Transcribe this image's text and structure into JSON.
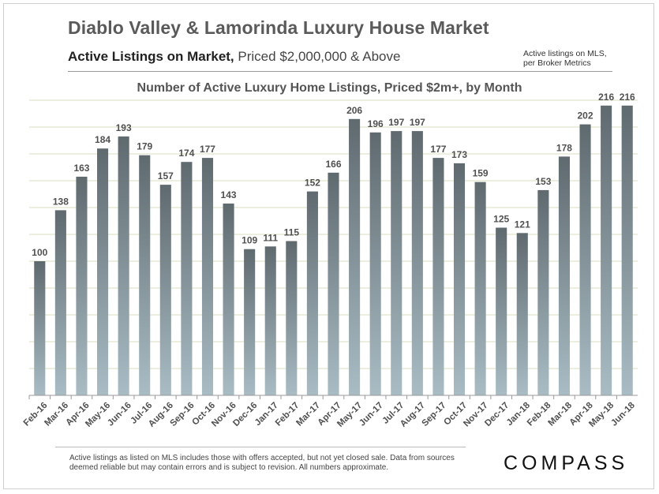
{
  "header": {
    "title": "Diablo Valley & Lamorinda Luxury House Market",
    "subtitle_bold": "Active Listings on Market,",
    "subtitle_rest": "Priced $2,000,000 & Above",
    "note_line1": "Active listings on MLS,",
    "note_line2": "per Broker Metrics"
  },
  "footer": {
    "footnote": "Active listings as listed on MLS includes those with offers accepted, but not yet closed sale. Data from sources deemed reliable but may contain errors and is subject to revision. All numbers approximate.",
    "logo": "COMPASS"
  },
  "colors": {
    "bar_top": "#5f6a6f",
    "bar_bottom": "#a9bcc4",
    "grid": "#d8dcc0",
    "label": "#505050"
  },
  "chart_data": {
    "type": "bar",
    "title": "Number of Active Luxury Home Listings, Priced $2m+, by Month",
    "categories": [
      "Feb-16",
      "Mar-16",
      "Apr-16",
      "May-16",
      "Jun-16",
      "Jul-16",
      "Aug-16",
      "Sep-16",
      "Oct-16",
      "Nov-16",
      "Dec-16",
      "Jan-17",
      "Feb-17",
      "Mar-17",
      "Apr-17",
      "May-17",
      "Jun-17",
      "Jul-17",
      "Aug-17",
      "Sep-17",
      "Oct-17",
      "Nov-17",
      "Dec-17",
      "Jan-18",
      "Feb-18",
      "Mar-18",
      "Apr-18",
      "May-18",
      "Jun-18"
    ],
    "values": [
      100,
      138,
      163,
      184,
      193,
      179,
      157,
      174,
      177,
      143,
      109,
      111,
      115,
      152,
      166,
      206,
      196,
      197,
      197,
      177,
      173,
      159,
      125,
      121,
      153,
      178,
      202,
      216,
      216
    ],
    "ylim": [
      0,
      220
    ],
    "grid": true,
    "data_labels": true
  }
}
